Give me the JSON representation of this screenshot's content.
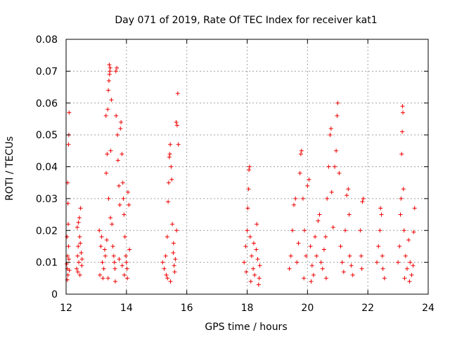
{
  "chart_data": {
    "type": "scatter",
    "title": "Day 071 of 2019, Rate Of TEC Index for receiver kat1",
    "xlabel": "GPS time / hours",
    "ylabel": "ROTI / TECUs",
    "xlim": [
      12,
      24
    ],
    "ylim": [
      0,
      0.08
    ],
    "x_ticks": [
      "12",
      "14",
      "16",
      "18",
      "20",
      "22",
      "24"
    ],
    "y_ticks": [
      "0",
      "0.01",
      "0.02",
      "0.03",
      "0.04",
      "0.05",
      "0.06",
      "0.07",
      "0.08"
    ],
    "grid": true,
    "marker": "+",
    "color": "#ee0000",
    "series": [
      {
        "name": "kat1",
        "points": [
          [
            12.02,
            0.0095
          ],
          [
            12.05,
            0.012
          ],
          [
            12.08,
            0.015
          ],
          [
            12.04,
            0.008
          ],
          [
            12.06,
            0.006
          ],
          [
            12.03,
            0.018
          ],
          [
            12.07,
            0.022
          ],
          [
            12.05,
            0.035
          ],
          [
            12.08,
            0.047
          ],
          [
            12.09,
            0.05
          ],
          [
            12.1,
            0.057
          ],
          [
            12.06,
            0.0285
          ],
          [
            12.09,
            0.011
          ],
          [
            12.11,
            0.0075
          ],
          [
            12.04,
            0.0045
          ],
          [
            12.35,
            0.008
          ],
          [
            12.38,
            0.012
          ],
          [
            12.4,
            0.015
          ],
          [
            12.42,
            0.01
          ],
          [
            12.45,
            0.018
          ],
          [
            12.37,
            0.021
          ],
          [
            12.44,
            0.024
          ],
          [
            12.48,
            0.027
          ],
          [
            12.5,
            0.013
          ],
          [
            12.46,
            0.006
          ],
          [
            12.52,
            0.009
          ],
          [
            12.41,
            0.0225
          ],
          [
            12.47,
            0.016
          ],
          [
            12.39,
            0.007
          ],
          [
            12.53,
            0.011
          ],
          [
            13.1,
            0.02
          ],
          [
            13.15,
            0.015
          ],
          [
            13.2,
            0.01
          ],
          [
            13.25,
            0.008
          ],
          [
            13.3,
            0.012
          ],
          [
            13.12,
            0.006
          ],
          [
            13.18,
            0.018
          ],
          [
            13.22,
            0.005
          ],
          [
            13.28,
            0.014
          ],
          [
            13.35,
            0.017
          ],
          [
            13.32,
            0.056
          ],
          [
            13.38,
            0.058
          ],
          [
            13.4,
            0.064
          ],
          [
            13.42,
            0.067
          ],
          [
            13.43,
            0.072
          ],
          [
            13.45,
            0.07
          ],
          [
            13.44,
            0.069
          ],
          [
            13.46,
            0.071
          ],
          [
            13.5,
            0.061
          ],
          [
            13.48,
            0.045
          ],
          [
            13.36,
            0.044
          ],
          [
            13.33,
            0.038
          ],
          [
            13.41,
            0.03
          ],
          [
            13.47,
            0.024
          ],
          [
            13.52,
            0.022
          ],
          [
            13.55,
            0.015
          ],
          [
            13.58,
            0.012
          ],
          [
            13.6,
            0.01
          ],
          [
            13.62,
            0.008
          ],
          [
            13.39,
            0.005
          ],
          [
            13.65,
            0.07
          ],
          [
            13.68,
            0.071
          ],
          [
            13.66,
            0.056
          ],
          [
            13.7,
            0.05
          ],
          [
            13.72,
            0.042
          ],
          [
            13.75,
            0.034
          ],
          [
            13.78,
            0.028
          ],
          [
            13.8,
            0.052
          ],
          [
            13.82,
            0.054
          ],
          [
            13.85,
            0.044
          ],
          [
            13.88,
            0.035
          ],
          [
            13.9,
            0.03
          ],
          [
            13.92,
            0.025
          ],
          [
            13.95,
            0.018
          ],
          [
            13.98,
            0.012
          ],
          [
            14.0,
            0.01
          ],
          [
            14.02,
            0.008
          ],
          [
            14.05,
            0.032
          ],
          [
            14.08,
            0.028
          ],
          [
            14.1,
            0.014
          ],
          [
            13.86,
            0.009
          ],
          [
            13.93,
            0.006
          ],
          [
            14.03,
            0.005
          ],
          [
            13.76,
            0.011
          ],
          [
            13.63,
            0.004
          ],
          [
            15.2,
            0.01
          ],
          [
            15.25,
            0.008
          ],
          [
            15.3,
            0.012
          ],
          [
            15.32,
            0.006
          ],
          [
            15.35,
            0.018
          ],
          [
            15.38,
            0.029
          ],
          [
            15.4,
            0.035
          ],
          [
            15.42,
            0.043
          ],
          [
            15.44,
            0.044
          ],
          [
            15.45,
            0.047
          ],
          [
            15.48,
            0.04
          ],
          [
            15.5,
            0.036
          ],
          [
            15.52,
            0.022
          ],
          [
            15.55,
            0.013
          ],
          [
            15.58,
            0.009
          ],
          [
            15.6,
            0.007
          ],
          [
            15.62,
            0.011
          ],
          [
            15.65,
            0.054
          ],
          [
            15.68,
            0.053
          ],
          [
            15.7,
            0.063
          ],
          [
            15.72,
            0.047
          ],
          [
            15.66,
            0.02
          ],
          [
            15.36,
            0.005
          ],
          [
            15.46,
            0.004
          ],
          [
            15.56,
            0.016
          ],
          [
            17.9,
            0.01
          ],
          [
            17.95,
            0.015
          ],
          [
            18.0,
            0.02
          ],
          [
            18.02,
            0.027
          ],
          [
            18.05,
            0.033
          ],
          [
            18.06,
            0.039
          ],
          [
            18.08,
            0.04
          ],
          [
            18.1,
            0.018
          ],
          [
            18.15,
            0.012
          ],
          [
            18.2,
            0.008
          ],
          [
            18.25,
            0.006
          ],
          [
            18.3,
            0.014
          ],
          [
            18.35,
            0.011
          ],
          [
            18.4,
            0.005
          ],
          [
            18.42,
            0.009
          ],
          [
            18.12,
            0.004
          ],
          [
            18.22,
            0.016
          ],
          [
            18.38,
            0.003
          ],
          [
            17.97,
            0.007
          ],
          [
            18.32,
            0.022
          ],
          [
            19.4,
            0.008
          ],
          [
            19.45,
            0.012
          ],
          [
            19.5,
            0.02
          ],
          [
            19.55,
            0.028
          ],
          [
            19.6,
            0.03
          ],
          [
            19.65,
            0.01
          ],
          [
            19.7,
            0.016
          ],
          [
            19.75,
            0.038
          ],
          [
            19.78,
            0.044
          ],
          [
            19.8,
            0.045
          ],
          [
            19.85,
            0.03
          ],
          [
            19.9,
            0.02
          ],
          [
            19.95,
            0.012
          ],
          [
            20.0,
            0.034
          ],
          [
            20.05,
            0.036
          ],
          [
            20.1,
            0.015
          ],
          [
            20.15,
            0.009
          ],
          [
            20.2,
            0.006
          ],
          [
            20.25,
            0.018
          ],
          [
            20.3,
            0.012
          ],
          [
            20.35,
            0.023
          ],
          [
            20.4,
            0.025
          ],
          [
            20.45,
            0.01
          ],
          [
            20.5,
            0.008
          ],
          [
            20.55,
            0.014
          ],
          [
            20.6,
            0.018
          ],
          [
            20.65,
            0.03
          ],
          [
            20.7,
            0.04
          ],
          [
            20.75,
            0.05
          ],
          [
            20.78,
            0.052
          ],
          [
            20.8,
            0.032
          ],
          [
            20.85,
            0.021
          ],
          [
            20.9,
            0.04
          ],
          [
            20.95,
            0.045
          ],
          [
            21.0,
            0.06
          ],
          [
            20.98,
            0.056
          ],
          [
            21.05,
            0.038
          ],
          [
            21.1,
            0.015
          ],
          [
            21.15,
            0.01
          ],
          [
            21.2,
            0.007
          ],
          [
            21.25,
            0.02
          ],
          [
            21.3,
            0.031
          ],
          [
            21.35,
            0.033
          ],
          [
            21.38,
            0.025
          ],
          [
            21.4,
            0.012
          ],
          [
            21.45,
            0.009
          ],
          [
            21.5,
            0.006
          ],
          [
            19.88,
            0.005
          ],
          [
            20.12,
            0.004
          ],
          [
            20.62,
            0.005
          ],
          [
            21.75,
            0.02
          ],
          [
            21.78,
            0.012
          ],
          [
            21.8,
            0.008
          ],
          [
            21.82,
            0.029
          ],
          [
            21.85,
            0.03
          ],
          [
            22.3,
            0.01
          ],
          [
            22.35,
            0.015
          ],
          [
            22.4,
            0.02
          ],
          [
            22.45,
            0.025
          ],
          [
            22.5,
            0.008
          ],
          [
            22.55,
            0.005
          ],
          [
            22.42,
            0.027
          ],
          [
            22.48,
            0.012
          ],
          [
            23.0,
            0.01
          ],
          [
            23.05,
            0.015
          ],
          [
            23.08,
            0.025
          ],
          [
            23.1,
            0.03
          ],
          [
            23.12,
            0.044
          ],
          [
            23.14,
            0.051
          ],
          [
            23.15,
            0.059
          ],
          [
            23.16,
            0.057
          ],
          [
            23.18,
            0.033
          ],
          [
            23.2,
            0.02
          ],
          [
            23.25,
            0.012
          ],
          [
            23.3,
            0.008
          ],
          [
            23.35,
            0.017
          ],
          [
            23.4,
            0.01
          ],
          [
            23.45,
            0.006
          ],
          [
            23.5,
            0.009
          ],
          [
            23.55,
            0.027
          ],
          [
            23.22,
            0.005
          ],
          [
            23.38,
            0.004
          ],
          [
            23.52,
            0.0195
          ]
        ]
      }
    ]
  }
}
